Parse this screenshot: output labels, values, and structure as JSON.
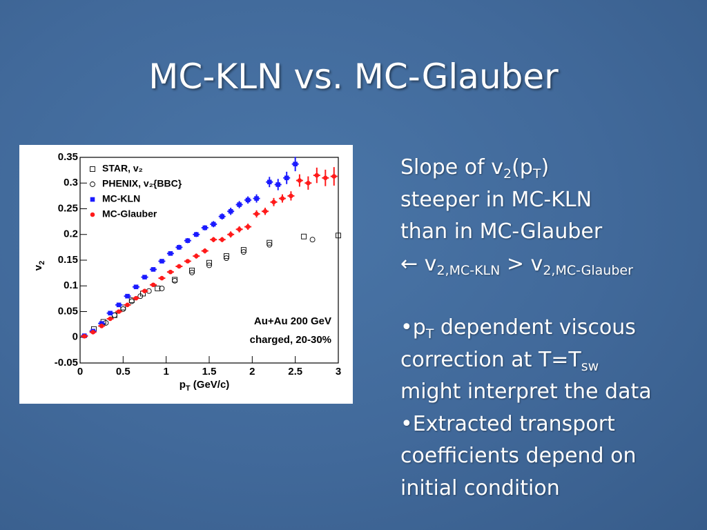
{
  "title": "MC-KLN vs. MC-Glauber",
  "text_blocks": [
    [
      [
        {
          "t": "Slope of v"
        },
        {
          "sub": "2"
        },
        {
          "t": "(p"
        },
        {
          "sub": "T"
        },
        {
          "t": ")"
        }
      ],
      [
        {
          "t": "steeper in MC-KLN"
        }
      ],
      [
        {
          "t": "than in MC-Glauber"
        }
      ],
      [
        {
          "t": "← v"
        },
        {
          "sub": "2,MC-KLN"
        },
        {
          "t": " > v"
        },
        {
          "sub": "2,MC-Glauber"
        }
      ]
    ],
    [
      [
        {
          "t": "•p"
        },
        {
          "sub": "T"
        },
        {
          "t": " dependent viscous"
        }
      ],
      [
        {
          "t": "correction at T=T"
        },
        {
          "sub": "sw"
        }
      ],
      [
        {
          "t": "might interpret the data"
        }
      ],
      [
        {
          "t": "•Extracted transport"
        }
      ],
      [
        {
          "t": "coefficients depend on"
        }
      ],
      [
        {
          "t": "initial condition"
        }
      ]
    ]
  ],
  "chart_data": {
    "type": "scatter",
    "xlabel": {
      "main": "p",
      "sub": "T",
      "rest": " (GeV/c)"
    },
    "ylabel": {
      "main": "v",
      "sub": "2"
    },
    "xlim": [
      0,
      3
    ],
    "xticks": [
      0,
      0.5,
      1,
      1.5,
      2,
      2.5,
      3
    ],
    "ylim": [
      -0.05,
      0.35
    ],
    "yticks": [
      -0.05,
      0,
      0.05,
      0.1,
      0.15,
      0.2,
      0.25,
      0.3,
      0.35
    ],
    "annotations": [
      "Au+Au 200 GeV",
      "charged, 20-30%"
    ],
    "series": [
      {
        "name": "STAR, v₂",
        "color": "#000000",
        "marker": "square-open",
        "x": [
          0.16,
          0.27,
          0.4,
          0.5,
          0.6,
          0.73,
          0.9,
          1.1,
          1.3,
          1.5,
          1.7,
          1.9,
          2.2,
          2.6,
          3.0
        ],
        "values": [
          0.016,
          0.03,
          0.043,
          0.058,
          0.072,
          0.085,
          0.095,
          0.112,
          0.13,
          0.145,
          0.158,
          0.17,
          0.184,
          0.196,
          0.198
        ]
      },
      {
        "name": "PHENIX, v₂{BBC}",
        "color": "#000000",
        "marker": "circle-open",
        "x": [
          0.3,
          0.4,
          0.5,
          0.6,
          0.7,
          0.8,
          0.95,
          1.1,
          1.3,
          1.5,
          1.7,
          1.9,
          2.2,
          2.7
        ],
        "values": [
          0.028,
          0.043,
          0.055,
          0.07,
          0.08,
          0.09,
          0.095,
          0.11,
          0.126,
          0.14,
          0.154,
          0.166,
          0.18,
          0.19
        ]
      },
      {
        "name": "MC-KLN",
        "color": "#1a1aff",
        "marker": "square",
        "x": [
          0.05,
          0.15,
          0.25,
          0.35,
          0.45,
          0.55,
          0.65,
          0.75,
          0.85,
          0.95,
          1.05,
          1.15,
          1.25,
          1.35,
          1.45,
          1.55,
          1.65,
          1.75,
          1.85,
          1.95,
          2.05,
          2.2,
          2.3,
          2.4,
          2.5
        ],
        "values": [
          0.003,
          0.012,
          0.027,
          0.047,
          0.063,
          0.08,
          0.098,
          0.117,
          0.132,
          0.148,
          0.163,
          0.175,
          0.188,
          0.2,
          0.213,
          0.22,
          0.235,
          0.245,
          0.258,
          0.267,
          0.27,
          0.302,
          0.297,
          0.31,
          0.337
        ],
        "errors": [
          0.002,
          0.002,
          0.003,
          0.003,
          0.003,
          0.003,
          0.004,
          0.004,
          0.004,
          0.004,
          0.004,
          0.005,
          0.005,
          0.005,
          0.005,
          0.006,
          0.006,
          0.007,
          0.007,
          0.007,
          0.008,
          0.01,
          0.011,
          0.012,
          0.014
        ]
      },
      {
        "name": "MC-Glauber",
        "color": "#ff1a1a",
        "marker": "circle",
        "x": [
          0.05,
          0.15,
          0.25,
          0.35,
          0.45,
          0.55,
          0.65,
          0.75,
          0.85,
          0.95,
          1.05,
          1.15,
          1.25,
          1.35,
          1.45,
          1.55,
          1.65,
          1.75,
          1.85,
          1.95,
          2.05,
          2.15,
          2.25,
          2.35,
          2.45,
          2.55,
          2.65,
          2.75,
          2.85,
          2.95
        ],
        "values": [
          0.002,
          0.01,
          0.022,
          0.036,
          0.05,
          0.063,
          0.076,
          0.09,
          0.102,
          0.115,
          0.127,
          0.138,
          0.148,
          0.158,
          0.168,
          0.19,
          0.19,
          0.2,
          0.21,
          0.215,
          0.24,
          0.245,
          0.263,
          0.27,
          0.275,
          0.305,
          0.3,
          0.315,
          0.31,
          0.313
        ],
        "errors": [
          0.002,
          0.002,
          0.002,
          0.003,
          0.003,
          0.003,
          0.003,
          0.003,
          0.004,
          0.004,
          0.004,
          0.004,
          0.004,
          0.005,
          0.005,
          0.005,
          0.005,
          0.006,
          0.006,
          0.006,
          0.007,
          0.007,
          0.008,
          0.008,
          0.009,
          0.012,
          0.013,
          0.015,
          0.016,
          0.018
        ]
      }
    ]
  }
}
